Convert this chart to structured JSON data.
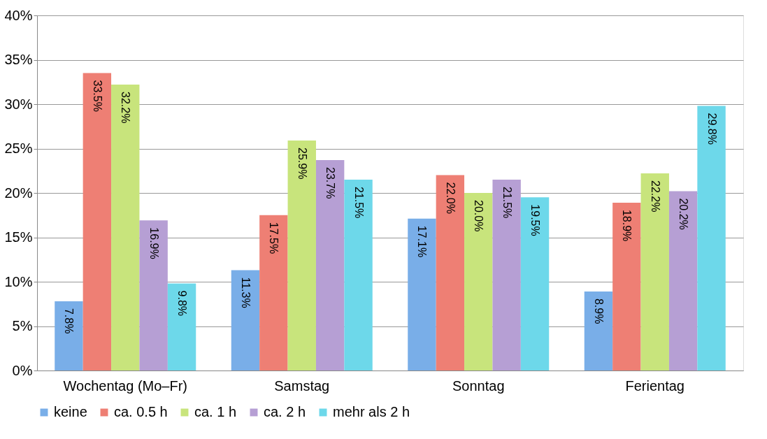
{
  "chart_data": {
    "type": "bar",
    "categories": [
      "Wochentag (Mo–Fr)",
      "Samstag",
      "Sonntag",
      "Ferientag"
    ],
    "series": [
      {
        "name": "keine",
        "color": "#79aee8",
        "values": [
          7.8,
          11.3,
          17.1,
          8.9
        ],
        "value_labels": [
          "7.8%",
          "11.3%",
          "17.1%",
          "8.9%"
        ]
      },
      {
        "name": "ca. 0.5 h",
        "color": "#ee7f74",
        "values": [
          33.5,
          17.5,
          22.0,
          18.9
        ],
        "value_labels": [
          "33.5%",
          "17.5%",
          "22.0%",
          "18.9%"
        ]
      },
      {
        "name": "ca. 1 h",
        "color": "#c8e47c",
        "values": [
          32.2,
          25.9,
          20.0,
          22.2
        ],
        "value_labels": [
          "32.2%",
          "25.9%",
          "20.0%",
          "22.2%"
        ]
      },
      {
        "name": "ca. 2 h",
        "color": "#b69fd4",
        "values": [
          16.9,
          23.7,
          21.5,
          20.2
        ],
        "value_labels": [
          "16.9%",
          "23.7%",
          "21.5%",
          "20.2%"
        ]
      },
      {
        "name": "mehr als 2 h",
        "color": "#6dd8ea",
        "values": [
          9.8,
          21.5,
          19.5,
          29.8
        ],
        "value_labels": [
          "9.8%",
          "21.5%",
          "19.5%",
          "29.8%"
        ]
      }
    ],
    "ylim": [
      0,
      40
    ],
    "yticks": [
      {
        "value": 0,
        "label": "0%"
      },
      {
        "value": 5,
        "label": "5%"
      },
      {
        "value": 10,
        "label": "10%"
      },
      {
        "value": 15,
        "label": "15%"
      },
      {
        "value": 20,
        "label": "20%"
      },
      {
        "value": 25,
        "label": "25%"
      },
      {
        "value": 30,
        "label": "30%"
      },
      {
        "value": 35,
        "label": "35%"
      },
      {
        "value": 40,
        "label": "40%"
      }
    ],
    "grid": "y",
    "legend": "bottom"
  }
}
